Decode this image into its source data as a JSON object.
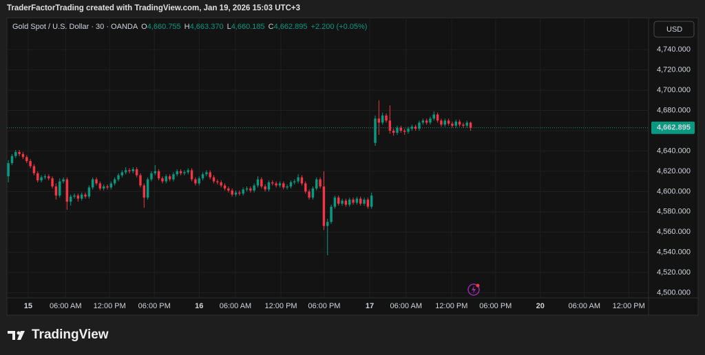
{
  "header": "TraderFactorTrading created with TradingView.com, Jan 19, 2026 15:03 UTC+3",
  "chart_data": {
    "type": "candlestick",
    "symbol": "Gold Spot / U.S. Dollar · 30 · OANDA",
    "ohlc_legend": [
      {
        "label": "O",
        "value": "4,660.755"
      },
      {
        "label": "H",
        "value": "4,663.370"
      },
      {
        "label": "L",
        "value": "4,660.185"
      },
      {
        "label": "C",
        "value": "4,662.895"
      }
    ],
    "change": "+2.200 (+0.05%)",
    "currency": "USD",
    "up_color": "#089981",
    "down_color": "#f23645",
    "grid": true,
    "open": [
      4615,
      4628,
      4635,
      4639,
      4637,
      4634,
      4630,
      4625,
      4618,
      4611,
      4614,
      4615,
      4613,
      4605,
      4596,
      4610,
      4612,
      4590,
      4595,
      4596,
      4593,
      4597,
      4595,
      4604,
      4612,
      4608,
      4603,
      4605,
      4604,
      4608,
      4612,
      4616,
      4619,
      4621,
      4620,
      4622,
      4616,
      4606,
      4594,
      4612,
      4618,
      4620,
      4613,
      4610,
      4615,
      4612,
      4617,
      4620,
      4618,
      4619,
      4621,
      4612,
      4608,
      4613,
      4617,
      4619,
      4614,
      4610,
      4609,
      4606,
      4603,
      4601,
      4597,
      4599,
      4598,
      4602,
      4603,
      4601,
      4606,
      4612,
      4605,
      4602,
      4609,
      4608,
      4606,
      4608,
      4604,
      4605,
      4609,
      4610,
      4614,
      4608,
      4600,
      4594,
      4603,
      4612,
      4605,
      4566,
      4570,
      4585,
      4594,
      4588,
      4591,
      4587,
      4592,
      4589,
      4593,
      4588,
      4592,
      4585,
      4648,
      4672,
      4668,
      4675,
      4670,
      4660,
      4658,
      4663,
      4660,
      4659,
      4662,
      4664,
      4662,
      4668,
      4670,
      4668,
      4672,
      4676,
      4670,
      4666,
      4670,
      4667,
      4665,
      4669,
      4666,
      4665,
      4668
    ],
    "high": [
      4631,
      4637,
      4641,
      4641,
      4639,
      4636,
      4632,
      4627,
      4620,
      4616,
      4617,
      4617,
      4615,
      4608,
      4613,
      4614,
      4614,
      4597,
      4598,
      4598,
      4599,
      4599,
      4606,
      4614,
      4614,
      4610,
      4607,
      4607,
      4610,
      4614,
      4618,
      4621,
      4624,
      4623,
      4624,
      4624,
      4618,
      4608,
      4614,
      4620,
      4626,
      4622,
      4615,
      4617,
      4617,
      4619,
      4622,
      4622,
      4621,
      4623,
      4623,
      4614,
      4615,
      4619,
      4621,
      4621,
      4616,
      4612,
      4611,
      4608,
      4605,
      4603,
      4601,
      4601,
      4604,
      4605,
      4605,
      4608,
      4615,
      4614,
      4607,
      4611,
      4611,
      4610,
      4610,
      4610,
      4607,
      4611,
      4612,
      4617,
      4616,
      4610,
      4602,
      4605,
      4614,
      4614,
      4620,
      4573,
      4587,
      4596,
      4596,
      4593,
      4593,
      4594,
      4594,
      4595,
      4595,
      4594,
      4594,
      4599,
      4675,
      4690,
      4678,
      4677,
      4685,
      4662,
      4665,
      4665,
      4662,
      4664,
      4666,
      4666,
      4670,
      4672,
      4672,
      4674,
      4679,
      4678,
      4672,
      4672,
      4672,
      4669,
      4671,
      4671,
      4668,
      4670,
      4669
    ],
    "low": [
      4609,
      4626,
      4633,
      4635,
      4632,
      4628,
      4623,
      4616,
      4609,
      4609,
      4612,
      4611,
      4603,
      4592,
      4594,
      4608,
      4582,
      4586,
      4593,
      4590,
      4591,
      4593,
      4593,
      4602,
      4606,
      4601,
      4601,
      4602,
      4602,
      4606,
      4610,
      4614,
      4617,
      4618,
      4618,
      4614,
      4604,
      4584,
      4592,
      4610,
      4616,
      4611,
      4608,
      4608,
      4610,
      4610,
      4615,
      4616,
      4616,
      4617,
      4610,
      4606,
      4606,
      4611,
      4615,
      4612,
      4608,
      4607,
      4604,
      4601,
      4599,
      4595,
      4595,
      4596,
      4596,
      4600,
      4599,
      4599,
      4604,
      4603,
      4600,
      4600,
      4606,
      4604,
      4604,
      4602,
      4602,
      4603,
      4607,
      4608,
      4606,
      4598,
      4592,
      4592,
      4601,
      4603,
      4562,
      4537,
      4568,
      4583,
      4586,
      4586,
      4585,
      4585,
      4587,
      4587,
      4586,
      4586,
      4583,
      4583,
      4645,
      4656,
      4666,
      4668,
      4657,
      4655,
      4656,
      4658,
      4656,
      4657,
      4660,
      4660,
      4660,
      4666,
      4666,
      4666,
      4670,
      4668,
      4664,
      4664,
      4665,
      4663,
      4663,
      4664,
      4663,
      4663,
      4660
    ],
    "close": [
      4628,
      4635,
      4639,
      4637,
      4634,
      4630,
      4625,
      4618,
      4611,
      4614,
      4615,
      4613,
      4605,
      4596,
      4610,
      4612,
      4590,
      4595,
      4596,
      4593,
      4597,
      4595,
      4604,
      4612,
      4608,
      4603,
      4605,
      4604,
      4608,
      4612,
      4616,
      4619,
      4621,
      4620,
      4622,
      4616,
      4606,
      4594,
      4612,
      4618,
      4620,
      4613,
      4610,
      4615,
      4612,
      4617,
      4620,
      4618,
      4619,
      4621,
      4612,
      4608,
      4613,
      4617,
      4619,
      4614,
      4610,
      4609,
      4606,
      4603,
      4601,
      4597,
      4599,
      4598,
      4602,
      4603,
      4601,
      4606,
      4612,
      4605,
      4602,
      4609,
      4608,
      4606,
      4608,
      4604,
      4605,
      4609,
      4610,
      4614,
      4608,
      4600,
      4594,
      4603,
      4612,
      4605,
      4566,
      4570,
      4585,
      4594,
      4588,
      4591,
      4587,
      4592,
      4589,
      4593,
      4588,
      4592,
      4585,
      4596,
      4672,
      4668,
      4675,
      4670,
      4660,
      4658,
      4663,
      4660,
      4659,
      4662,
      4664,
      4662,
      4668,
      4670,
      4668,
      4672,
      4676,
      4670,
      4666,
      4670,
      4667,
      4665,
      4669,
      4666,
      4665,
      4668,
      4663
    ],
    "ylim": [
      4495,
      4770
    ],
    "yticks": [
      {
        "value": 4500,
        "label": "4,500.000"
      },
      {
        "value": 4520,
        "label": "4,520.000"
      },
      {
        "value": 4540,
        "label": "4,540.000"
      },
      {
        "value": 4560,
        "label": "4,560.000"
      },
      {
        "value": 4580,
        "label": "4,580.000"
      },
      {
        "value": 4600,
        "label": "4,600.000"
      },
      {
        "value": 4620,
        "label": "4,620.000"
      },
      {
        "value": 4640,
        "label": "4,640.000"
      },
      {
        "value": 4660,
        "label": "4,660.000"
      },
      {
        "value": 4680,
        "label": "4,680.000"
      },
      {
        "value": 4700,
        "label": "4,700.000"
      },
      {
        "value": 4720,
        "label": "4,720.000"
      },
      {
        "value": 4740,
        "label": "4,740.000"
      }
    ],
    "xlim": [
      -0.4,
      174.5
    ],
    "xticks": [
      {
        "value": 5.4,
        "label": "15"
      },
      {
        "value": 15.6,
        "label": "06:00 AM"
      },
      {
        "value": 27.6,
        "label": "12:00 PM"
      },
      {
        "value": 39.8,
        "label": "06:00 PM"
      },
      {
        "value": 52,
        "label": "16"
      },
      {
        "value": 61.9,
        "label": "06:00 AM"
      },
      {
        "value": 74.3,
        "label": "12:00 PM"
      },
      {
        "value": 86.1,
        "label": "06:00 PM"
      },
      {
        "value": 98.5,
        "label": "17"
      },
      {
        "value": 108.4,
        "label": "06:00 AM"
      },
      {
        "value": 120.8,
        "label": "12:00 PM"
      },
      {
        "value": 132.8,
        "label": "06:00 PM"
      },
      {
        "value": 145,
        "label": "20"
      },
      {
        "value": 157,
        "label": "06:00 AM"
      },
      {
        "value": 169.1,
        "label": "12:00 PM"
      }
    ],
    "last_price": {
      "value": 4662.895,
      "label": "4,662.895"
    }
  },
  "branding": "TradingView"
}
